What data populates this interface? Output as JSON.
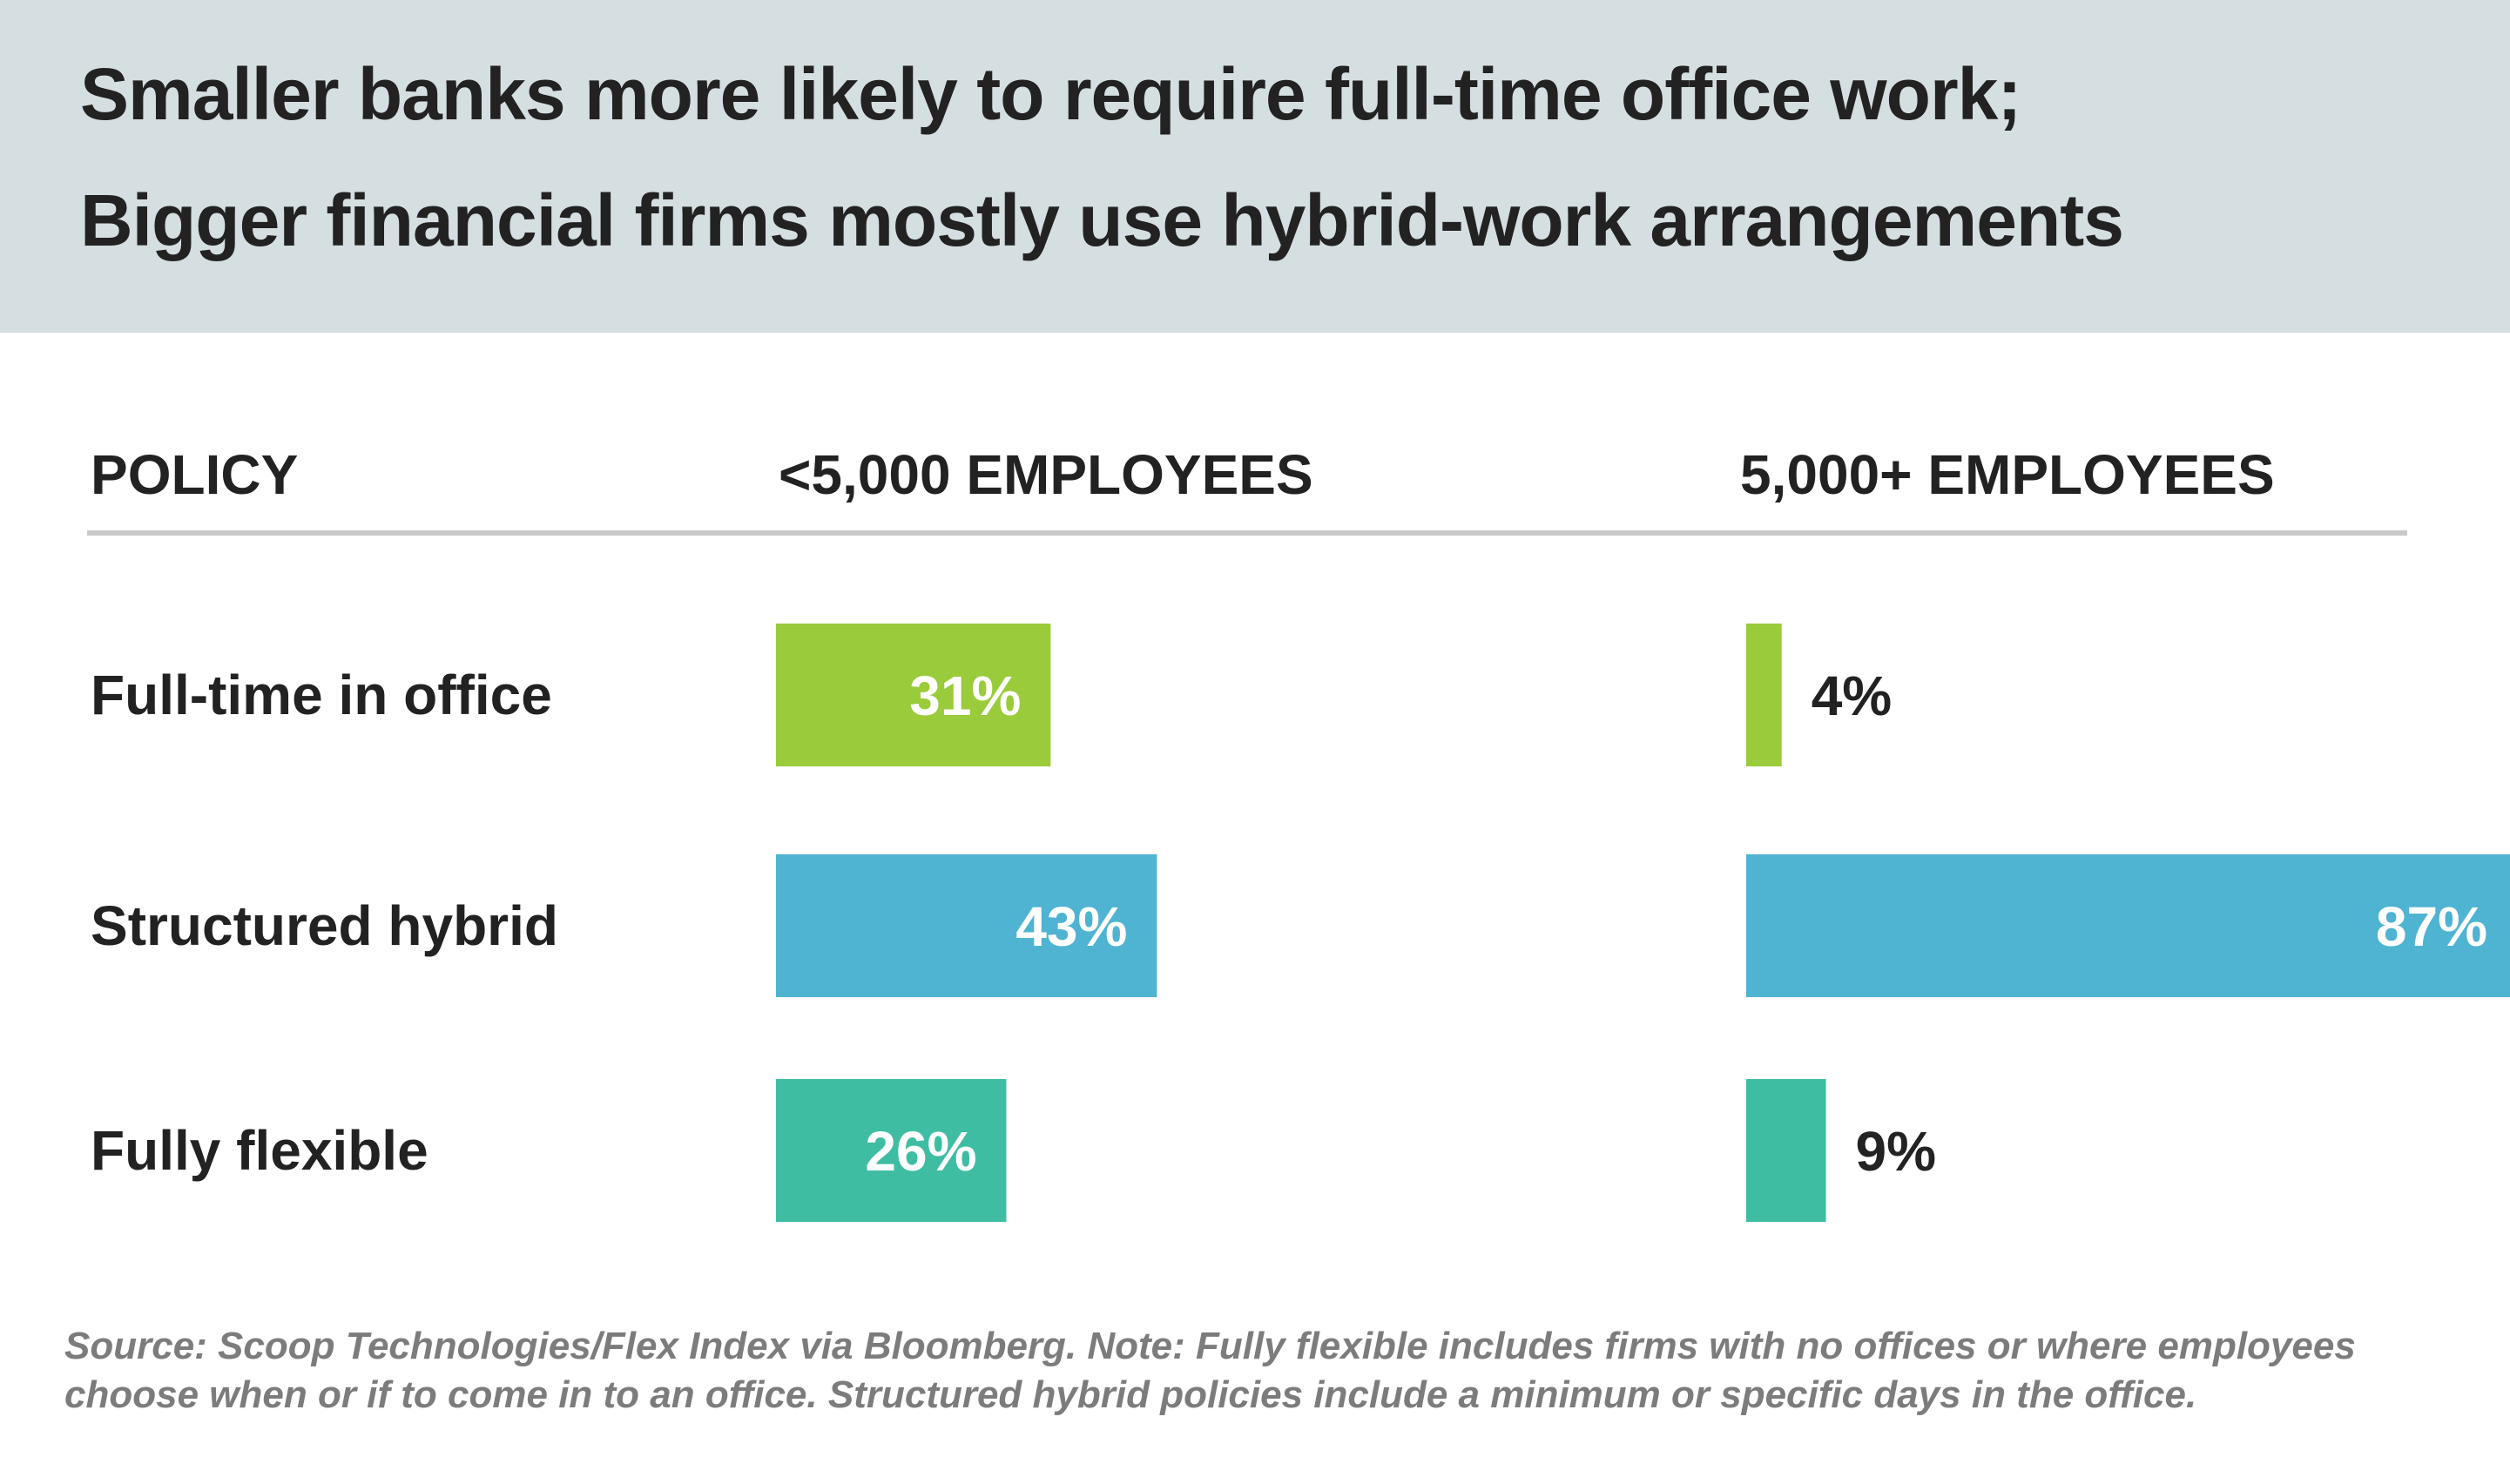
{
  "header": {
    "title_line1": "Smaller banks more likely to require full-time office work;",
    "title_line2": "Bigger financial firms mostly use hybrid-work arrangements"
  },
  "columns": {
    "policy": "POLICY",
    "small": "<5,000 EMPLOYEES",
    "large": "5,000+ EMPLOYEES"
  },
  "source": {
    "line1": "Source: Scoop Technologies/Flex Index via Bloomberg. Note: Fully flexible includes firms with no offices or where employees",
    "line2": "choose when or if to come in to an office. Structured hybrid policies include a minimum or specific days in the office."
  },
  "chart_data": {
    "type": "bar",
    "title": "Smaller banks more likely to require full-time office work; Bigger financial firms mostly use hybrid-work arrangements",
    "categories": [
      "Full-time in office",
      "Structured hybrid",
      "Fully flexible"
    ],
    "category_colors": [
      "#9acb3a",
      "#4fb3d2",
      "#3fbda2"
    ],
    "label_color_inside": "#ffffff",
    "label_color_outside": "#222222",
    "value_format": "{v}%",
    "series": [
      {
        "name": "<5,000 EMPLOYEES",
        "values": [
          31,
          43,
          26
        ]
      },
      {
        "name": "5,000+ EMPLOYEES",
        "values": [
          4,
          87,
          9
        ]
      }
    ],
    "unit": "%"
  }
}
